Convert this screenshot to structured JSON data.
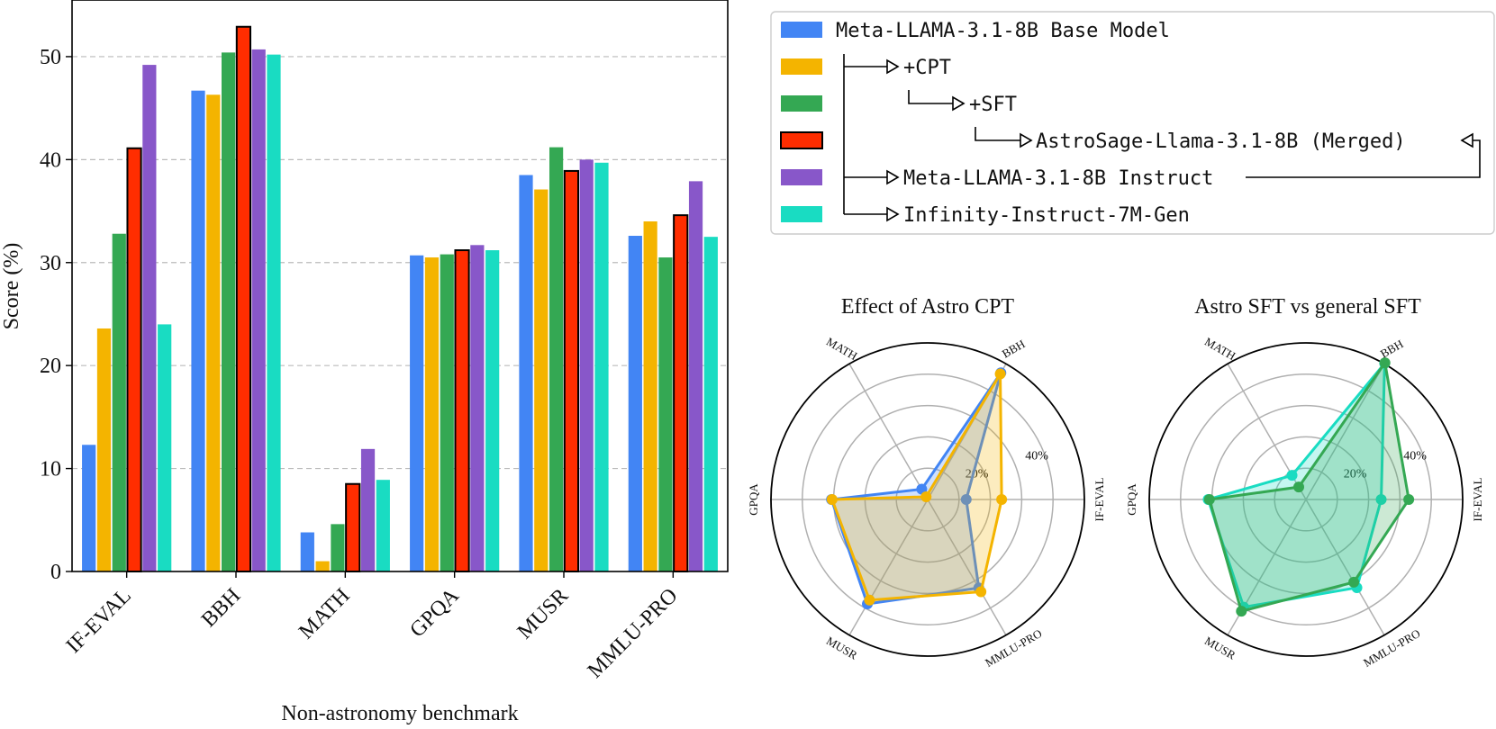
{
  "colors": {
    "base": "#4285f4",
    "cpt": "#f4b400",
    "sft": "#34a853",
    "merged": "#ff2d00",
    "instruct": "#8857c9",
    "infinity": "#19dcc2"
  },
  "legend": {
    "items": [
      {
        "key": "base",
        "label": "Meta-LLAMA-3.1-8B Base Model"
      },
      {
        "key": "cpt",
        "label": "+CPT"
      },
      {
        "key": "sft",
        "label": "+SFT"
      },
      {
        "key": "merged",
        "label": "AstroSage-Llama-3.1-8B (Merged)"
      },
      {
        "key": "instruct",
        "label": "Meta-LLAMA-3.1-8B Instruct"
      },
      {
        "key": "infinity",
        "label": "Infinity-Instruct-7M-Gen"
      }
    ]
  },
  "chart_data": [
    {
      "type": "bar",
      "xlabel": "Non-astronomy benchmark",
      "ylabel": "Score (%)",
      "ylim": [
        0,
        55.5
      ],
      "yticks": [
        0,
        10,
        20,
        30,
        40,
        50
      ],
      "grid": "horizontal dashed",
      "categories": [
        "IF-EVAL",
        "BBH",
        "MATH",
        "GPQA",
        "MUSR",
        "MMLU-PRO"
      ],
      "series": [
        {
          "key": "base",
          "name": "Meta-LLAMA-3.1-8B Base Model",
          "values": [
            12.3,
            46.7,
            3.8,
            30.7,
            38.5,
            32.6
          ]
        },
        {
          "key": "cpt",
          "name": "+CPT",
          "values": [
            23.6,
            46.3,
            1.0,
            30.5,
            37.1,
            34.0
          ]
        },
        {
          "key": "sft",
          "name": "+SFT",
          "values": [
            32.8,
            50.4,
            4.6,
            30.8,
            41.2,
            30.5
          ]
        },
        {
          "key": "merged",
          "name": "AstroSage-Llama-3.1-8B (Merged)",
          "values": [
            41.1,
            52.9,
            8.5,
            31.2,
            38.9,
            34.6
          ]
        },
        {
          "key": "instruct",
          "name": "Meta-LLAMA-3.1-8B Instruct",
          "values": [
            49.2,
            50.7,
            11.9,
            31.7,
            40.0,
            37.9
          ]
        },
        {
          "key": "infinity",
          "name": "Infinity-Instruct-7M-Gen",
          "values": [
            24.0,
            50.2,
            8.9,
            31.2,
            39.7,
            32.5
          ]
        }
      ]
    },
    {
      "type": "radar",
      "title": "Effect of Astro CPT",
      "axes": [
        "IF-EVAL",
        "BBH",
        "MATH",
        "GPQA",
        "MUSR",
        "MMLU-PRO"
      ],
      "rmax": 50,
      "ring_labels": [
        "20%",
        "40%"
      ],
      "series": [
        {
          "key": "base",
          "values": [
            12.3,
            46.7,
            3.8,
            30.7,
            38.5,
            32.6
          ]
        },
        {
          "key": "cpt",
          "values": [
            23.6,
            46.3,
            1.0,
            30.5,
            37.1,
            34.0
          ]
        }
      ]
    },
    {
      "type": "radar",
      "title": "Astro SFT vs general SFT",
      "axes": [
        "IF-EVAL",
        "BBH",
        "MATH",
        "GPQA",
        "MUSR",
        "MMLU-PRO"
      ],
      "rmax": 50,
      "ring_labels": [
        "20%",
        "40%"
      ],
      "series": [
        {
          "key": "infinity",
          "values": [
            24.0,
            50.2,
            8.9,
            31.2,
            39.7,
            32.5
          ]
        },
        {
          "key": "sft",
          "values": [
            32.8,
            50.4,
            4.6,
            30.8,
            41.2,
            30.5
          ]
        }
      ]
    }
  ]
}
